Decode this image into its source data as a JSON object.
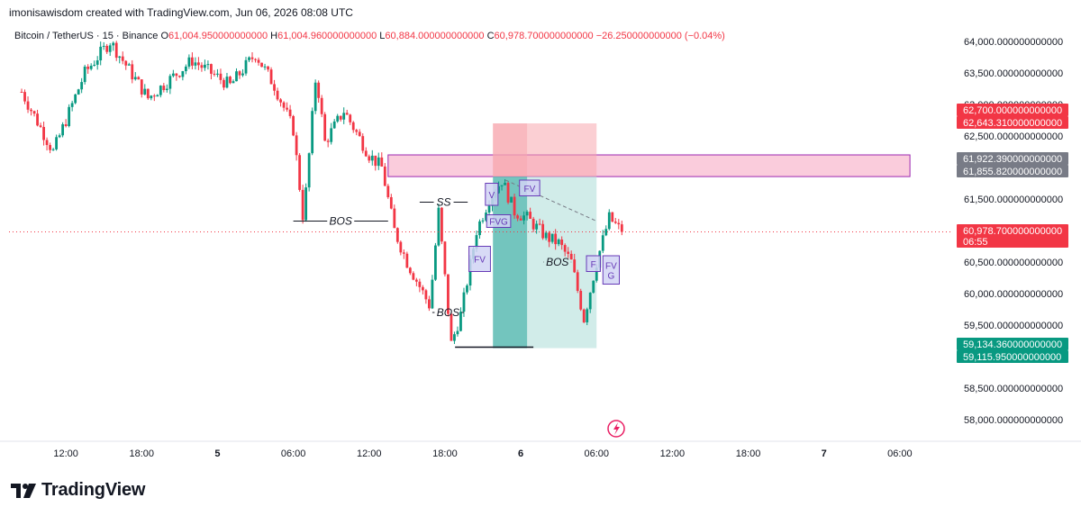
{
  "header": {
    "credit": "imonisawisdom created with TradingView.com, Jun 06, 2026 08:08 UTC"
  },
  "legend": {
    "symbol": "Bitcoin / TetherUS · 15 · Binance",
    "open_label": "O",
    "open": "61,004.950000000000",
    "high_label": "H",
    "high": "61,004.960000000000",
    "low_label": "L",
    "low": "60,884.000000000000",
    "close_label": "C",
    "close": "60,978.700000000000",
    "change": "−26.250000000000 (−0.04%)"
  },
  "colors": {
    "up": "#089981",
    "down": "#f23645",
    "zone": "#f8bbd0",
    "zone_border": "#9c27b0",
    "stop": "#f7a8ae",
    "target": "#b2dfdb",
    "fvg_fill": "#d1d4f5",
    "fvg_border": "#673ab7"
  },
  "brand": {
    "name": "TradingView",
    "icon": "tradingview-logo-icon"
  },
  "chart_data": {
    "type": "candlestick",
    "symbol": "Bitcoin / TetherUS",
    "interval": "15",
    "exchange": "Binance",
    "y_axis": {
      "range": [
        57800,
        64300
      ],
      "ticks": [
        64000,
        63500,
        63000,
        62500,
        61500,
        60500,
        60000,
        59500,
        58500,
        58000
      ],
      "tick_labels": [
        "64,000.000000000000",
        "63,500.000000000000",
        "63,000.000000000000",
        "62,500.000000000000",
        "61,500.000000000000",
        "60,500.000000000000",
        "60,000.000000000000",
        "59,500.000000000000",
        "58,500.000000000000",
        "58,000.000000000000"
      ]
    },
    "x_axis": {
      "ticks": [
        {
          "label": "12:00",
          "hours": -12
        },
        {
          "label": "18:00",
          "hours": -6
        },
        {
          "label": "5",
          "hours": 0
        },
        {
          "label": "06:00",
          "hours": 6
        },
        {
          "label": "12:00",
          "hours": 12
        },
        {
          "label": "18:00",
          "hours": 18
        },
        {
          "label": "6",
          "hours": 24
        },
        {
          "label": "06:00",
          "hours": 30
        },
        {
          "label": "12:00",
          "hours": 36
        },
        {
          "label": "18:00",
          "hours": 42
        },
        {
          "label": "7",
          "hours": 48
        },
        {
          "label": "06:00",
          "hours": 54
        }
      ]
    },
    "price_tags": [
      {
        "value": 62700,
        "label": "62,700.000000000000",
        "color": "#f23645"
      },
      {
        "value": 62643.31,
        "label": "62,643.310000000000",
        "color": "#f23645"
      },
      {
        "value": 61922.39,
        "label": "61,922.390000000000",
        "color": "#787b86"
      },
      {
        "value": 61855.82,
        "label": "61,855.820000000000",
        "color": "#787b86"
      },
      {
        "value": 60978.7,
        "label": "60,978.700000000000",
        "extra": "06:55",
        "color": "#f23645"
      },
      {
        "value": 59134.36,
        "label": "59,134.360000000000",
        "color": "#089981"
      },
      {
        "value": 59115.95,
        "label": "59,115.950000000000",
        "color": "#089981"
      }
    ],
    "anchors": [
      {
        "hours": -15.5,
        "price": 63200
      },
      {
        "hours": -13,
        "price": 62250
      },
      {
        "hours": -10.5,
        "price": 63500
      },
      {
        "hours": -8.5,
        "price": 64000
      },
      {
        "hours": -5.5,
        "price": 63100
      },
      {
        "hours": -2,
        "price": 63700
      },
      {
        "hours": 1,
        "price": 63300
      },
      {
        "hours": 3,
        "price": 63800
      },
      {
        "hours": 4.5,
        "price": 63300
      },
      {
        "hours": 6,
        "price": 62600
      },
      {
        "hours": 6.8,
        "price": 61150
      },
      {
        "hours": 7.8,
        "price": 63500
      },
      {
        "hours": 8.5,
        "price": 62400
      },
      {
        "hours": 10,
        "price": 62900
      },
      {
        "hours": 12,
        "price": 62200
      },
      {
        "hours": 13,
        "price": 62000
      },
      {
        "hours": 14,
        "price": 61000
      },
      {
        "hours": 15,
        "price": 60500
      },
      {
        "hours": 16.8,
        "price": 59800
      },
      {
        "hours": 17.5,
        "price": 61300
      },
      {
        "hours": 18.5,
        "price": 59200
      },
      {
        "hours": 19.3,
        "price": 59700
      },
      {
        "hours": 20.5,
        "price": 61000
      },
      {
        "hours": 21.5,
        "price": 61500
      },
      {
        "hours": 22.5,
        "price": 61800
      },
      {
        "hours": 23.5,
        "price": 61300
      },
      {
        "hours": 24.5,
        "price": 61200
      },
      {
        "hours": 26,
        "price": 60900
      },
      {
        "hours": 27,
        "price": 60800
      },
      {
        "hours": 28,
        "price": 60500
      },
      {
        "hours": 29,
        "price": 59600
      },
      {
        "hours": 30,
        "price": 60500
      },
      {
        "hours": 31,
        "price": 61200
      },
      {
        "hours": 32,
        "price": 60980
      }
    ],
    "structure_lines": [
      {
        "label": "BOS",
        "price": 61150,
        "from_hours": 6,
        "to_hours": 13.5
      },
      {
        "label": "BOS",
        "price": 59700,
        "from_hours": 17,
        "to_hours": 19.5
      },
      {
        "label": "SS",
        "price": 61450,
        "from_hours": 16,
        "to_hours": 19.8
      },
      {
        "label": "BOS",
        "price": 60500,
        "from_hours": 25.8,
        "to_hours": 28
      },
      {
        "label": "",
        "price": 59150,
        "from_hours": 18.8,
        "to_hours": 25
      }
    ],
    "supply_zone": {
      "top": 62200,
      "bottom": 61855.82,
      "from_hours": 13.5,
      "to_hours": 54.8
    },
    "position": {
      "entry": 61855.82,
      "stop": 62700,
      "target": 59134.36,
      "from_hours": 21.8,
      "to_hours": 30,
      "inner_from_hours": 21.8,
      "inner_to_hours": 24.5
    },
    "fvg_labels": [
      {
        "text": "V",
        "price_top": 61750,
        "price_bottom": 61400,
        "from_hours": 21.2,
        "to_hours": 22.2
      },
      {
        "text": "FVG",
        "price_top": 61250,
        "price_bottom": 61050,
        "from_hours": 21.3,
        "to_hours": 23.2
      },
      {
        "text": "FV",
        "price_top": 61800,
        "price_bottom": 61550,
        "from_hours": 23.9,
        "to_hours": 25.5
      },
      {
        "text": "FV",
        "price_top": 60750,
        "price_bottom": 60350,
        "from_hours": 19.9,
        "to_hours": 21.6
      },
      {
        "text": "F",
        "price_top": 60600,
        "price_bottom": 60350,
        "from_hours": 29.2,
        "to_hours": 30.3
      },
      {
        "text": "FV G",
        "price_top": 60600,
        "price_bottom": 60150,
        "from_hours": 30.5,
        "to_hours": 31.8
      }
    ],
    "grid": false,
    "last_price": 60978.7
  }
}
